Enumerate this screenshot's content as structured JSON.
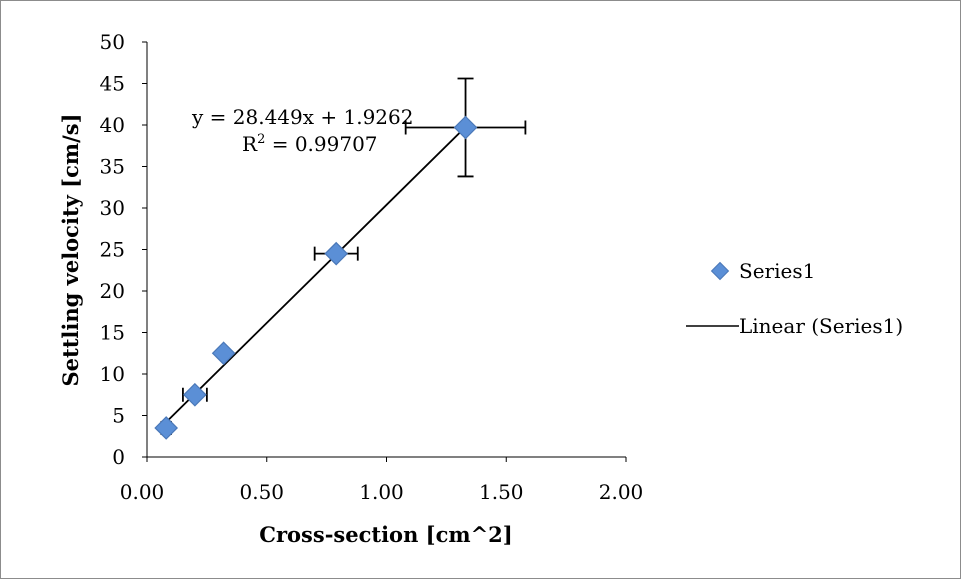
{
  "chart_data": {
    "type": "scatter",
    "xlabel": "Cross-section [cm^2]",
    "ylabel": "Settling velocity [cm/s]",
    "xlim": [
      0,
      2
    ],
    "ylim": [
      0,
      50
    ],
    "x_ticks": [
      "0.00",
      "0.50",
      "1.00",
      "1.50",
      "2.00"
    ],
    "y_ticks": [
      "0",
      "5",
      "10",
      "15",
      "20",
      "25",
      "30",
      "35",
      "40",
      "45",
      "50"
    ],
    "grid": false,
    "legend_position": "right",
    "series": [
      {
        "name": "Series1",
        "marker": "diamond",
        "color": "#5b8fd6",
        "points": [
          {
            "x": 0.08,
            "y": 3.5,
            "x_err": 0.02,
            "y_err": 0
          },
          {
            "x": 0.2,
            "y": 7.5,
            "x_err": 0.05,
            "y_err": 0
          },
          {
            "x": 0.32,
            "y": 12.5,
            "x_err": 0,
            "y_err": 0
          },
          {
            "x": 0.79,
            "y": 24.5,
            "x_err": 0.09,
            "y_err": 0
          },
          {
            "x": 1.33,
            "y": 39.7,
            "x_err": 0.25,
            "y_err": 5.9
          }
        ]
      }
    ],
    "trendline": {
      "name": "Linear (Series1)",
      "slope": 28.449,
      "intercept": 1.9262,
      "x_range": [
        0.08,
        1.33
      ],
      "equation_line1": "y = 28.449x + 1.9262",
      "r2_label": "R",
      "r2_sup": "2",
      "r2_value": " = 0.99707"
    }
  }
}
